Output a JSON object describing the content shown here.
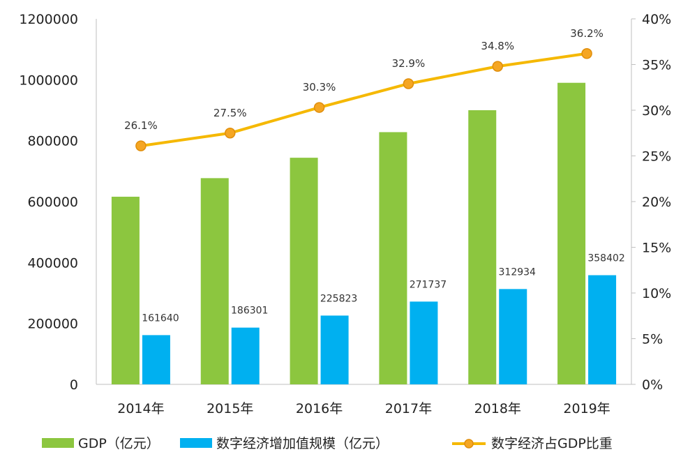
{
  "chart_data": {
    "type": "bar",
    "categories": [
      "2014年",
      "2015年",
      "2016年",
      "2017年",
      "2018年",
      "2019年"
    ],
    "series": [
      {
        "name": "GDP（亿元）",
        "axis": "left",
        "kind": "bar",
        "color": "#8cc63f",
        "values": [
          616000,
          677000,
          744000,
          828000,
          900000,
          990000
        ]
      },
      {
        "name": "数字经济增加值规模（亿元）",
        "axis": "left",
        "kind": "bar",
        "color": "#00b0f0",
        "values": [
          161640,
          186301,
          225823,
          271737,
          312934,
          358402
        ],
        "labels": [
          "161640",
          "186301",
          "225823",
          "271737",
          "312934",
          "358402"
        ]
      },
      {
        "name": "数字经济占GDP比重",
        "axis": "right",
        "kind": "line",
        "color": "#f5b800",
        "marker_fill": "#f5a623",
        "values": [
          26.1,
          27.5,
          30.3,
          32.9,
          34.8,
          36.2
        ],
        "labels": [
          "26.1%",
          "27.5%",
          "30.3%",
          "32.9%",
          "34.8%",
          "36.2%"
        ]
      }
    ],
    "y_left": {
      "min": 0,
      "max": 1200000,
      "ticks": [
        "0",
        "200000",
        "400000",
        "600000",
        "800000",
        "1000000",
        "1200000"
      ]
    },
    "y_right": {
      "min": 0,
      "max": 40,
      "ticks": [
        "0%",
        "5%",
        "10%",
        "15%",
        "20%",
        "25%",
        "30%",
        "35%",
        "40%"
      ]
    },
    "grid": false,
    "legend_position": "bottom"
  }
}
